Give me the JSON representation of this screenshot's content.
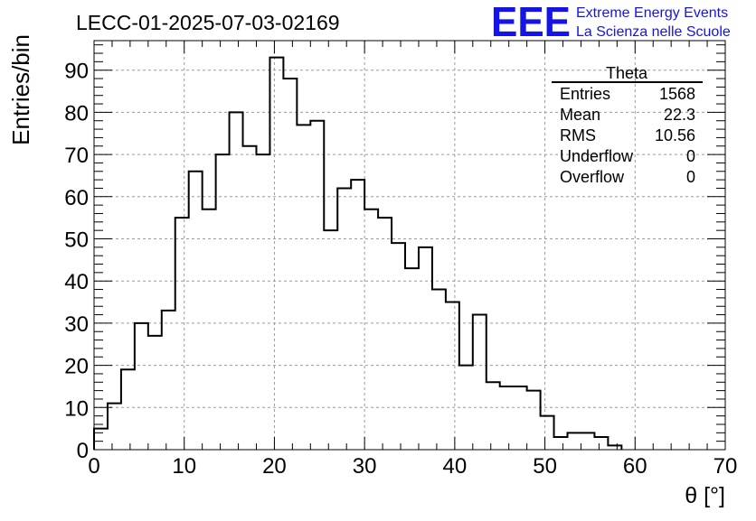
{
  "title": "LECC-01-2025-07-03-02169",
  "logo": {
    "text": "EEE",
    "line1": "Extreme Energy Events",
    "line2": "La Scienza nelle Scuole",
    "color": "#1414e6"
  },
  "stats": {
    "name": "Theta",
    "rows": [
      {
        "label": "Entries",
        "value": "1568"
      },
      {
        "label": "Mean",
        "value": "22.3"
      },
      {
        "label": "RMS",
        "value": "10.56"
      },
      {
        "label": "Underflow",
        "value": "0"
      },
      {
        "label": "Overflow",
        "value": "0"
      }
    ]
  },
  "chart_data": {
    "type": "histogram",
    "xlabel": "θ [°]",
    "ylabel": "Entries/bin",
    "xlim": [
      0,
      70
    ],
    "ylim": [
      0,
      97
    ],
    "bin_width": 1.5,
    "bin_start": 0,
    "values": [
      5,
      11,
      19,
      30,
      27,
      33,
      55,
      66,
      57,
      70,
      80,
      72,
      70,
      93,
      88,
      77,
      78,
      52,
      62,
      64,
      57,
      55,
      49,
      43,
      48,
      38,
      35,
      20,
      32,
      16,
      15,
      15,
      14,
      8,
      3,
      4,
      4,
      3,
      1
    ],
    "xticks": [
      0,
      10,
      20,
      30,
      40,
      50,
      60,
      70
    ],
    "yticks": [
      0,
      10,
      20,
      30,
      40,
      50,
      60,
      70,
      80,
      90
    ],
    "grid": true,
    "line_color": "#000000"
  }
}
